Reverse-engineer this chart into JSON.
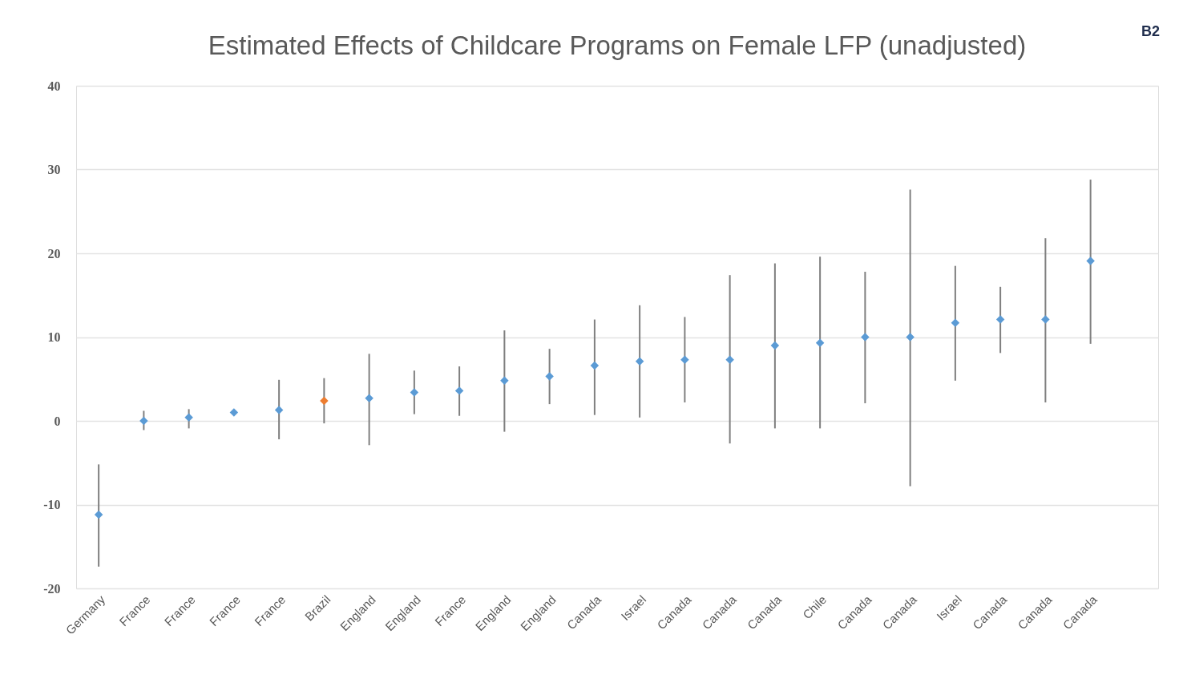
{
  "chart_data": {
    "type": "scatter",
    "title": "Estimated Effects of Childcare Programs on Female LFP (unadjusted)",
    "categories": [
      "Germany",
      "France",
      "France",
      "France",
      "France",
      "Brazil",
      "England",
      "England",
      "France",
      "England",
      "England",
      "Canada",
      "Israel",
      "Canada",
      "Canada",
      "Canada",
      "Chile",
      "Canada",
      "Canada",
      "Israel",
      "Canada",
      "Canada",
      "Canada"
    ],
    "values": [
      -11.2,
      0.0,
      0.4,
      1.0,
      1.3,
      2.4,
      2.7,
      3.4,
      3.6,
      4.8,
      5.3,
      6.6,
      7.1,
      7.3,
      7.3,
      9.0,
      9.3,
      10.0,
      10.0,
      11.7,
      12.1,
      12.1,
      19.1
    ],
    "errors": [
      [
        -17.4,
        -5.2
      ],
      [
        -1.1,
        1.2
      ],
      [
        -0.9,
        1.4
      ],
      null,
      [
        -2.2,
        4.9
      ],
      [
        -0.3,
        5.1
      ],
      [
        -2.9,
        8.0
      ],
      [
        0.8,
        6.0
      ],
      [
        0.6,
        6.5
      ],
      [
        -1.3,
        10.8
      ],
      [
        2.0,
        8.6
      ],
      [
        0.7,
        12.1
      ],
      [
        0.4,
        13.8
      ],
      [
        2.2,
        12.4
      ],
      [
        -2.7,
        17.4
      ],
      [
        -0.9,
        18.8
      ],
      [
        -0.9,
        19.6
      ],
      [
        2.1,
        17.8
      ],
      [
        -7.8,
        27.6
      ],
      [
        4.8,
        18.5
      ],
      [
        8.1,
        16.0
      ],
      [
        2.2,
        21.8
      ],
      [
        9.2,
        28.8
      ]
    ],
    "colors": [
      "#5b9bd5",
      "#5b9bd5",
      "#5b9bd5",
      "#5b9bd5",
      "#5b9bd5",
      "#ed7d31",
      "#5b9bd5",
      "#5b9bd5",
      "#5b9bd5",
      "#5b9bd5",
      "#5b9bd5",
      "#5b9bd5",
      "#5b9bd5",
      "#5b9bd5",
      "#5b9bd5",
      "#5b9bd5",
      "#5b9bd5",
      "#5b9bd5",
      "#5b9bd5",
      "#5b9bd5",
      "#5b9bd5",
      "#5b9bd5",
      "#5b9bd5"
    ],
    "ylim": [
      -20,
      40
    ],
    "yticks": [
      -20,
      -10,
      0,
      10,
      20,
      30,
      40
    ],
    "grid": "y",
    "marker": "diamond",
    "annotations": [
      "B2"
    ]
  }
}
